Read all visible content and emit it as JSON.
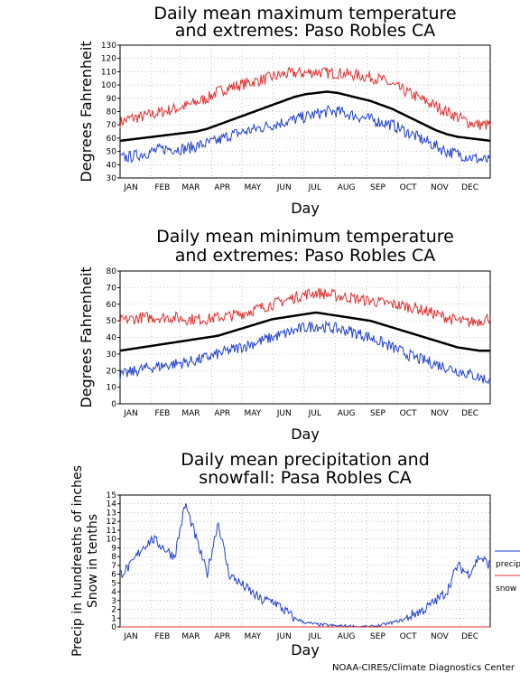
{
  "months": [
    "JAN",
    "FEB",
    "MAR",
    "APR",
    "MAY",
    "JUN",
    "JUL",
    "AUG",
    "SEP",
    "OCT",
    "NOV",
    "DEC"
  ],
  "credit": "NOAA-CIRES/Climate Diagnostics Center",
  "colors": {
    "mean": "#000000",
    "max_extreme": "#e03030",
    "min_extreme": "#2040d0",
    "precip": "#2040d0",
    "snow": "#e03030",
    "grid": "#999999"
  },
  "chart_data": [
    {
      "id": "max",
      "type": "line",
      "title": [
        "Daily mean maximum temperature",
        "and extremes: Paso Robles CA"
      ],
      "xlabel": "Day",
      "ylabel": [
        "Degrees Fahrenheit"
      ],
      "ylim": [
        30,
        130
      ],
      "yticks": [
        30,
        40,
        50,
        60,
        70,
        80,
        90,
        100,
        110,
        120,
        130
      ],
      "grid": true,
      "series": [
        {
          "role": "upper",
          "values": [
            72,
            75,
            76,
            78,
            80,
            82,
            84,
            87,
            90,
            95,
            98,
            100,
            102,
            104,
            106,
            108,
            109,
            109,
            110,
            109,
            109,
            108,
            107,
            106,
            104,
            100,
            96,
            92,
            88,
            84,
            80,
            76,
            72,
            70,
            70
          ]
        },
        {
          "role": "mean",
          "values": [
            58,
            59,
            60,
            61,
            62,
            63,
            64,
            65,
            67,
            70,
            73,
            76,
            79,
            82,
            85,
            88,
            91,
            93,
            94,
            95,
            94,
            92,
            90,
            88,
            85,
            82,
            78,
            74,
            70,
            66,
            63,
            61,
            60,
            59,
            58
          ]
        },
        {
          "role": "lower",
          "values": [
            45,
            46,
            48,
            50,
            52,
            52,
            52,
            54,
            56,
            58,
            62,
            64,
            66,
            68,
            70,
            72,
            74,
            76,
            78,
            80,
            80,
            78,
            76,
            74,
            72,
            70,
            66,
            62,
            58,
            54,
            50,
            48,
            46,
            44,
            43
          ]
        }
      ]
    },
    {
      "id": "min",
      "type": "line",
      "title": [
        "Daily mean minimum temperature",
        "and extremes: Paso Robles CA"
      ],
      "xlabel": "Day",
      "ylabel": [
        "Degrees Fahrenheit"
      ],
      "ylim": [
        0,
        80
      ],
      "yticks": [
        0,
        10,
        20,
        30,
        40,
        50,
        60,
        70,
        80
      ],
      "grid": true,
      "series": [
        {
          "role": "upper",
          "values": [
            50,
            51,
            52,
            52,
            52,
            52,
            51,
            51,
            51,
            52,
            53,
            54,
            56,
            58,
            60,
            62,
            64,
            66,
            67,
            66,
            65,
            64,
            63,
            62,
            61,
            60,
            59,
            58,
            56,
            54,
            52,
            50,
            49,
            50,
            52
          ]
        },
        {
          "role": "mean",
          "values": [
            32,
            33,
            34,
            35,
            36,
            37,
            38,
            39,
            40,
            41,
            43,
            45,
            47,
            49,
            51,
            52,
            53,
            54,
            55,
            54,
            53,
            52,
            51,
            50,
            48,
            46,
            44,
            42,
            40,
            38,
            36,
            34,
            33,
            32,
            32
          ]
        },
        {
          "role": "lower",
          "values": [
            17,
            19,
            21,
            22,
            23,
            24,
            25,
            26,
            28,
            30,
            32,
            34,
            36,
            38,
            40,
            42,
            44,
            46,
            47,
            46,
            45,
            44,
            42,
            40,
            37,
            34,
            31,
            28,
            26,
            24,
            22,
            20,
            18,
            16,
            14
          ]
        }
      ]
    },
    {
      "id": "precip",
      "type": "line",
      "title": [
        "Daily mean precipitation and",
        "snowfall: Pasa Robles CA"
      ],
      "xlabel": "Day",
      "ylabel": [
        "Precip in hundreaths of inches",
        "Snow in tenths"
      ],
      "ylim": [
        0,
        15
      ],
      "yticks": [
        0,
        1,
        2,
        3,
        4,
        5,
        6,
        7,
        8,
        9,
        10,
        11,
        12,
        13,
        14,
        15
      ],
      "grid": true,
      "legend": [
        {
          "label": "precip",
          "role": "precip"
        },
        {
          "label": "snow",
          "role": "snow"
        }
      ],
      "series": [
        {
          "role": "precip",
          "values": [
            6,
            7,
            9,
            10,
            9,
            8,
            14,
            10,
            6,
            12,
            6,
            5,
            4,
            3,
            3,
            2,
            1,
            0.5,
            0.3,
            0.2,
            0.1,
            0.1,
            0,
            0,
            0.2,
            0.5,
            0.8,
            1.5,
            2,
            3,
            4,
            7,
            6,
            8,
            7
          ]
        },
        {
          "role": "snow",
          "values": [
            0,
            0,
            0,
            0,
            0,
            0,
            0,
            0,
            0,
            0,
            0,
            0,
            0,
            0,
            0,
            0,
            0,
            0,
            0,
            0,
            0,
            0,
            0,
            0,
            0,
            0,
            0,
            0,
            0,
            0,
            0,
            0,
            0,
            0,
            0
          ]
        }
      ]
    }
  ]
}
